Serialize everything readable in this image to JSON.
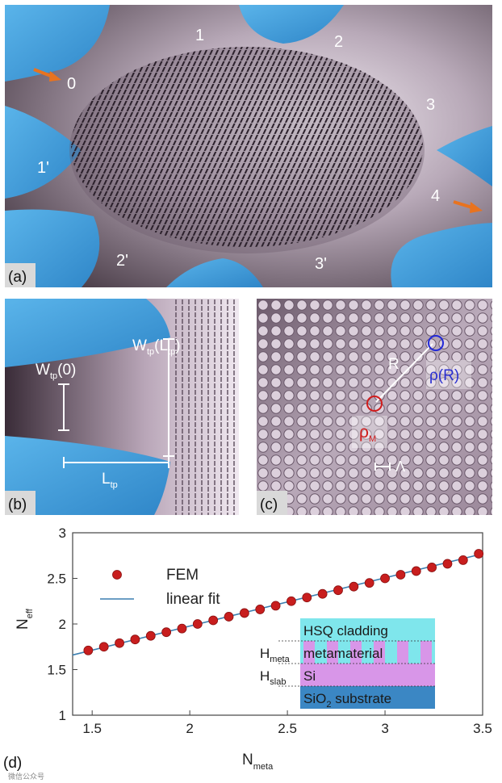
{
  "panel_a": {
    "label": "(a)",
    "ports": [
      "0",
      "1",
      "2",
      "3",
      "4",
      "1'",
      "2'",
      "3'"
    ]
  },
  "panel_b": {
    "label": "(b)",
    "w_tp_0": {
      "main": "W",
      "sub": "tp",
      "rest": "(0)"
    },
    "w_tp_l": {
      "main": "W",
      "sub": "tp",
      "rest": "(L",
      "sub2": "tp",
      "end": ")"
    },
    "l_tp": {
      "main": "L",
      "sub": "tp"
    }
  },
  "panel_c": {
    "label": "(c)",
    "r_label": "R",
    "rho_r": "ρ(R)",
    "rho_m": {
      "main": "ρ",
      "sub": "M"
    },
    "lambda": "Λ"
  },
  "panel_d": {
    "label": "(d)",
    "watermark": "微信公众号",
    "inset": {
      "cladding": "HSQ cladding",
      "metamaterial": "metamaterial",
      "si": "Si",
      "substrate": "SiO",
      "substrate_sub": "2",
      "substrate_rest": " substrate",
      "h_meta": {
        "main": "H",
        "sub": "meta"
      },
      "h_slab": {
        "main": "H",
        "sub": "slab"
      }
    }
  },
  "colors": {
    "waveguide_blue": "#4aa3dc",
    "marker_red": "#c81e1e",
    "fit_line": "#3b7fb0",
    "inset_cyan": "#7fe6ec",
    "inset_violet": "#d896e8",
    "inset_blue": "#3b87c4"
  },
  "chart_data": {
    "type": "scatter",
    "xlabel": {
      "main": "N",
      "sub": "meta"
    },
    "ylabel": {
      "main": "N",
      "sub": "eff"
    },
    "xlim": [
      1.4,
      3.5
    ],
    "ylim": [
      1,
      3
    ],
    "xticks": [
      "1.5",
      "2",
      "2.5",
      "3",
      "3.5"
    ],
    "yticks": [
      "1",
      "1.5",
      "2",
      "2.5",
      "3"
    ],
    "grid": false,
    "legend_position": "top-left",
    "series": [
      {
        "name": "FEM",
        "style": "markers",
        "x": [
          1.48,
          1.56,
          1.64,
          1.72,
          1.8,
          1.88,
          1.96,
          2.04,
          2.12,
          2.2,
          2.28,
          2.36,
          2.44,
          2.52,
          2.6,
          2.68,
          2.76,
          2.84,
          2.92,
          3.0,
          3.08,
          3.16,
          3.24,
          3.32,
          3.4,
          3.48
        ],
        "y": [
          1.71,
          1.75,
          1.79,
          1.83,
          1.87,
          1.91,
          1.95,
          2.0,
          2.04,
          2.08,
          2.12,
          2.16,
          2.2,
          2.25,
          2.29,
          2.33,
          2.37,
          2.41,
          2.45,
          2.5,
          2.54,
          2.58,
          2.62,
          2.66,
          2.7,
          2.77
        ]
      },
      {
        "name": "linear fit",
        "style": "line",
        "x": [
          1.4,
          3.5
        ],
        "y": [
          1.66,
          2.77
        ]
      }
    ]
  }
}
